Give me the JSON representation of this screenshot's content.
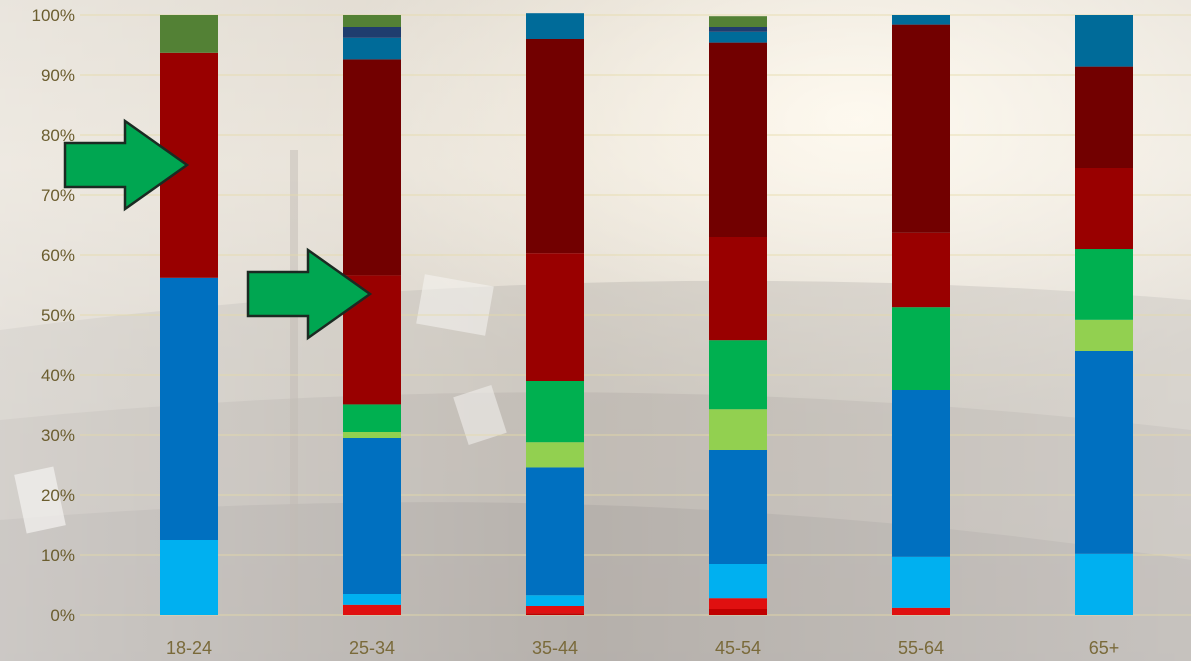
{
  "chart_data": {
    "type": "bar",
    "stacked": true,
    "percent": true,
    "categories": [
      "18-24",
      "25-34",
      "35-44",
      "45-54",
      "55-64",
      "65+"
    ],
    "y_ticks": [
      "0%",
      "10%",
      "20%",
      "30%",
      "40%",
      "50%",
      "60%",
      "70%",
      "80%",
      "90%",
      "100%"
    ],
    "ylim": [
      0,
      100
    ],
    "grid": true,
    "title": "",
    "xlabel": "",
    "ylabel": "",
    "series": [
      {
        "color": "#c00000",
        "values": [
          0,
          0,
          0.3,
          1.0,
          0,
          0
        ]
      },
      {
        "color": "#e01010",
        "values": [
          0,
          1.7,
          1.2,
          1.8,
          1.2,
          0
        ]
      },
      {
        "color": "#00b0f0",
        "values": [
          12.5,
          1.8,
          1.8,
          5.7,
          8.5,
          10.2
        ]
      },
      {
        "color": "#0070c0",
        "values": [
          43.7,
          26.0,
          21.3,
          19.0,
          27.8,
          33.8
        ]
      },
      {
        "color": "#92d050",
        "values": [
          0,
          1.0,
          4.2,
          6.8,
          0,
          5.2
        ]
      },
      {
        "color": "#00b050",
        "values": [
          0,
          4.6,
          10.2,
          11.5,
          13.8,
          11.8
        ]
      },
      {
        "color": "#990000",
        "values": [
          37.5,
          21.5,
          21.3,
          17.2,
          12.4,
          13.5
        ]
      },
      {
        "color": "#720000",
        "values": [
          0,
          36.0,
          35.7,
          32.4,
          34.7,
          16.9
        ]
      },
      {
        "color": "#006b99",
        "values": [
          0,
          3.6,
          4.3,
          1.8,
          1.6,
          8.6
        ]
      },
      {
        "color": "#1f3d6e",
        "values": [
          0,
          1.8,
          0,
          0.8,
          0,
          0
        ]
      },
      {
        "color": "#538135",
        "values": [
          6.3,
          2.0,
          0,
          1.8,
          0,
          0
        ]
      }
    ],
    "annotations": [
      {
        "type": "arrow",
        "color": "#00a651",
        "category": "18-24",
        "y": 75
      },
      {
        "type": "arrow",
        "color": "#00a651",
        "category": "25-34",
        "y": 53.5
      }
    ]
  }
}
